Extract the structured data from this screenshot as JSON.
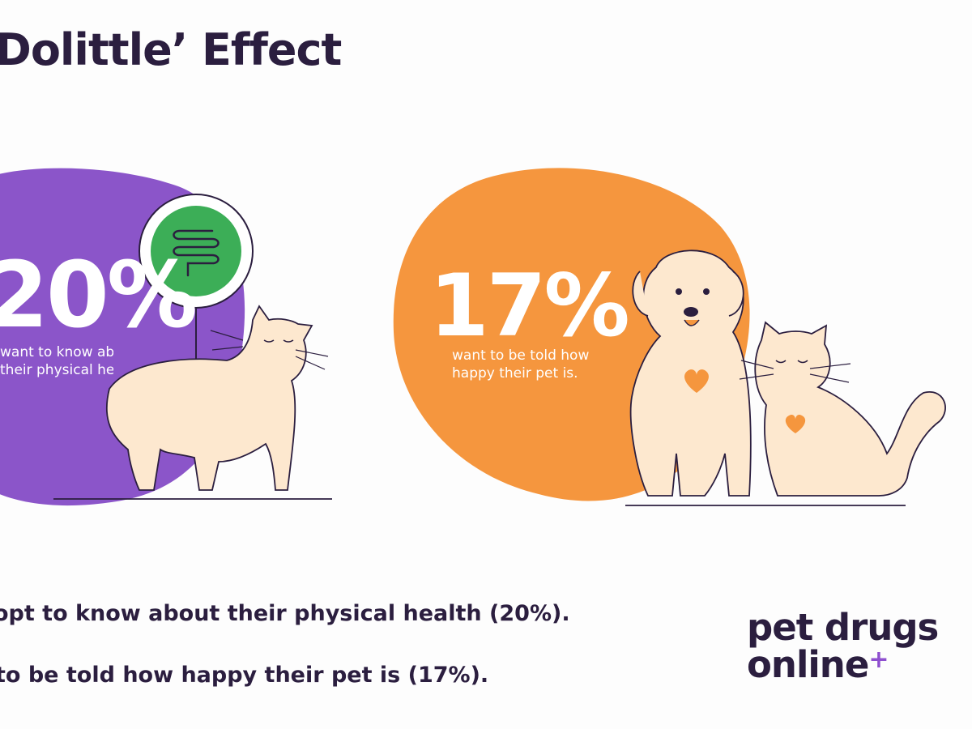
{
  "title": "Dolittle’ Effect",
  "left_stat": {
    "value": "20%",
    "caption_line1": "want to know about",
    "caption_line2": "their physical health.",
    "bubble_color": "#8b55c9"
  },
  "right_stat": {
    "value": "17%",
    "caption_line1": "want to be told how",
    "caption_line2": "happy their pet is.",
    "bubble_color": "#f5963e"
  },
  "summary": {
    "line1": "opt to know about their physical health (20%).",
    "line2": "to be told how happy their pet is (17%)."
  },
  "logo": {
    "line1": "pet drugs",
    "line2": "online",
    "plus": "+",
    "plus_color": "#8e4fcf"
  },
  "icons": [
    "intestine-icon",
    "cat-illustration",
    "dog-illustration",
    "heart-icon"
  ]
}
